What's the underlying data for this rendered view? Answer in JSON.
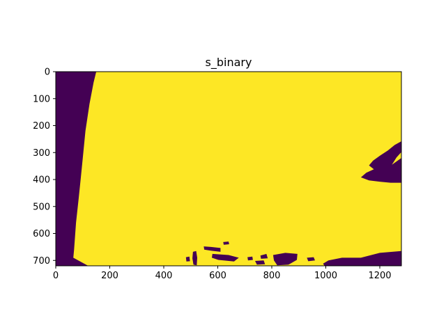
{
  "chart_data": {
    "type": "heatmap",
    "title": "s_binary",
    "xlabel": "",
    "ylabel": "",
    "xlim": [
      0,
      1280
    ],
    "ylim": [
      720,
      0
    ],
    "xticks": [
      0,
      200,
      400,
      600,
      800,
      1000,
      1200
    ],
    "yticks": [
      0,
      100,
      200,
      300,
      400,
      500,
      600,
      700
    ],
    "image_size": [
      1280,
      720
    ],
    "values_domain": [
      0,
      1
    ],
    "colormap": "viridis",
    "colors": {
      "zero": "#440154",
      "one": "#fde725"
    },
    "grid": false,
    "legend": "none",
    "zero_regions": [
      {
        "name": "left-band",
        "points": [
          [
            0,
            0
          ],
          [
            150,
            0
          ],
          [
            140,
            40
          ],
          [
            125,
            120
          ],
          [
            110,
            220
          ],
          [
            100,
            320
          ],
          [
            92,
            400
          ],
          [
            85,
            470
          ],
          [
            75,
            560
          ],
          [
            68,
            660
          ],
          [
            65,
            690
          ],
          [
            120,
            720
          ],
          [
            0,
            720
          ]
        ]
      },
      {
        "name": "right-blob",
        "points": [
          [
            1280,
            258
          ],
          [
            1255,
            272
          ],
          [
            1230,
            292
          ],
          [
            1200,
            312
          ],
          [
            1175,
            330
          ],
          [
            1160,
            348
          ],
          [
            1178,
            362
          ],
          [
            1150,
            375
          ],
          [
            1130,
            392
          ],
          [
            1160,
            403
          ],
          [
            1200,
            408
          ],
          [
            1240,
            412
          ],
          [
            1280,
            412
          ],
          [
            1280,
            320
          ],
          [
            1245,
            345
          ],
          [
            1262,
            318
          ],
          [
            1280,
            298
          ]
        ]
      },
      {
        "name": "bottom-right",
        "points": [
          [
            1280,
            665
          ],
          [
            1200,
            672
          ],
          [
            1130,
            690
          ],
          [
            1060,
            690
          ],
          [
            1010,
            700
          ],
          [
            990,
            712
          ],
          [
            995,
            720
          ],
          [
            1280,
            720
          ]
        ]
      },
      {
        "name": "bottom-patch-1",
        "points": [
          [
            548,
            648
          ],
          [
            575,
            650
          ],
          [
            610,
            654
          ],
          [
            610,
            668
          ],
          [
            575,
            664
          ],
          [
            550,
            660
          ]
        ]
      },
      {
        "name": "bottom-patch-2",
        "points": [
          [
            805,
            680
          ],
          [
            850,
            672
          ],
          [
            895,
            676
          ],
          [
            893,
            698
          ],
          [
            862,
            716
          ],
          [
            820,
            718
          ],
          [
            808,
            700
          ]
        ]
      },
      {
        "name": "bottom-patch-3",
        "points": [
          [
            508,
            668
          ],
          [
            520,
            665
          ],
          [
            524,
            690
          ],
          [
            522,
            718
          ],
          [
            510,
            716
          ],
          [
            506,
            692
          ]
        ]
      },
      {
        "name": "bottom-patch-4",
        "points": [
          [
            738,
            702
          ],
          [
            770,
            700
          ],
          [
            775,
            714
          ],
          [
            745,
            716
          ]
        ]
      },
      {
        "name": "bottom-patch-5",
        "points": [
          [
            580,
            676
          ],
          [
            640,
            680
          ],
          [
            678,
            690
          ],
          [
            660,
            704
          ],
          [
            602,
            698
          ],
          [
            578,
            690
          ]
        ]
      },
      {
        "name": "bottom-patch-6",
        "points": [
          [
            482,
            688
          ],
          [
            495,
            686
          ],
          [
            497,
            703
          ],
          [
            484,
            704
          ]
        ]
      },
      {
        "name": "bottom-patch-7",
        "points": [
          [
            930,
            690
          ],
          [
            955,
            688
          ],
          [
            960,
            700
          ],
          [
            935,
            703
          ]
        ]
      },
      {
        "name": "bottom-patch-8",
        "points": [
          [
            758,
            682
          ],
          [
            780,
            676
          ],
          [
            785,
            692
          ],
          [
            760,
            694
          ]
        ]
      },
      {
        "name": "bottom-patch-9",
        "points": [
          [
            710,
            688
          ],
          [
            728,
            686
          ],
          [
            730,
            698
          ],
          [
            712,
            700
          ]
        ]
      },
      {
        "name": "bottom-patch-10",
        "points": [
          [
            620,
            632
          ],
          [
            640,
            630
          ],
          [
            642,
            640
          ],
          [
            622,
            642
          ]
        ]
      }
    ]
  }
}
